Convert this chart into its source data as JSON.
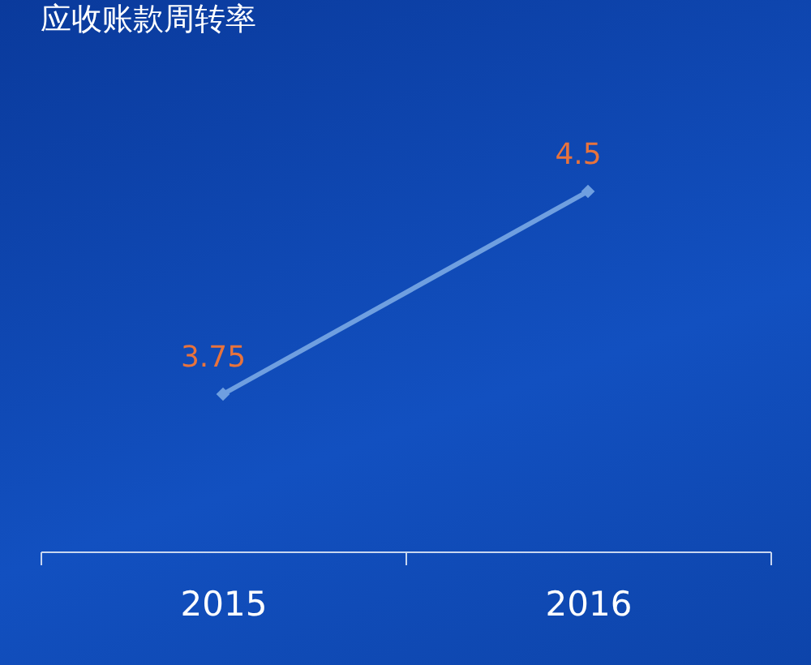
{
  "chart_data": {
    "type": "line",
    "title": "应收账款周转率",
    "categories": [
      "2015",
      "2016"
    ],
    "series": [
      {
        "color": "#6f9fe0",
        "values": [
          3.75,
          4.5
        ]
      }
    ],
    "tick_labels": "x",
    "data_labels": true,
    "marker": "diamond",
    "grid": false
  }
}
